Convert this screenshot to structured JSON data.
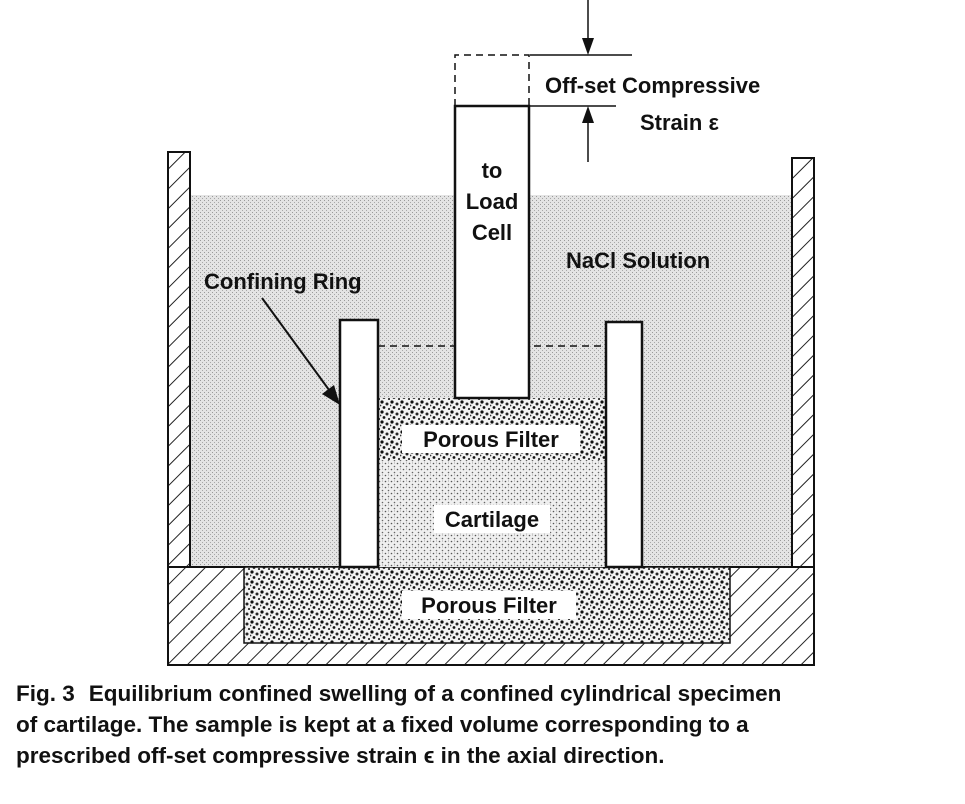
{
  "figure": {
    "labels": {
      "load_cell": [
        "to",
        "Load",
        "Cell"
      ],
      "offset_strain": [
        "Off-set Compressive",
        "Strain ε"
      ],
      "nacl_solution": "NaCl Solution",
      "confining_ring": "Confining Ring",
      "porous_filter_top": "Porous Filter",
      "cartilage": "Cartilage",
      "porous_filter_bottom": "Porous Filter"
    },
    "caption": {
      "figure_number": "Fig. 3",
      "lines": [
        "Equilibrium confined swelling of a confined cylindrical specimen",
        "of cartilage. The sample is kept at a fixed volume corresponding to a",
        "prescribed off-set compressive strain ϵ in the axial direction."
      ]
    }
  }
}
